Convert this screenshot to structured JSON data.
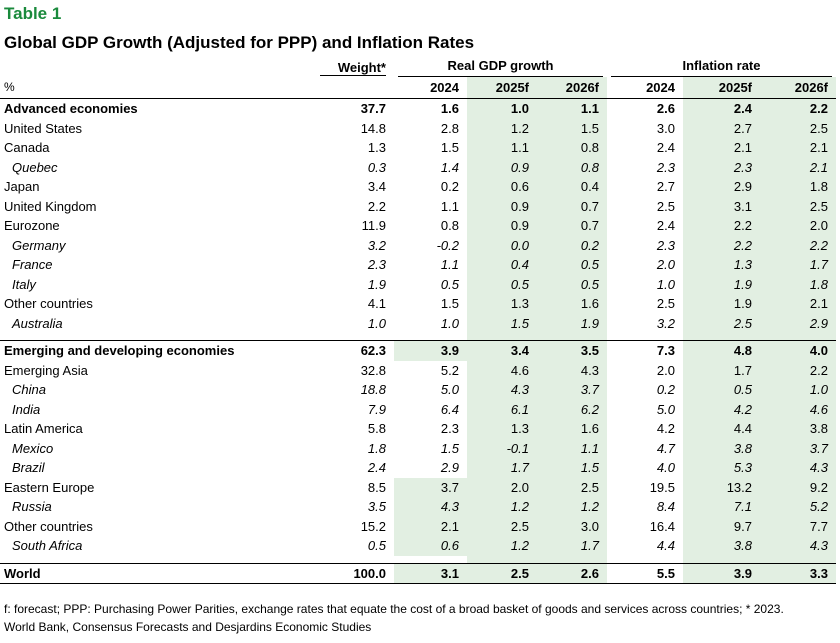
{
  "label": "Table 1",
  "title": "Global GDP Growth (Adjusted for PPP) and Inflation Rates",
  "headers": {
    "unit": "%",
    "weight": "Weight*",
    "gdp_group": "Real GDP growth",
    "inflation_group": "Inflation rate",
    "years": [
      "2024",
      "2025f",
      "2026f"
    ]
  },
  "rows": [
    {
      "name": "Advanced economies",
      "weight": "37.7",
      "gdp": [
        "1.6",
        "1.0",
        "1.1"
      ],
      "inf": [
        "2.6",
        "2.4",
        "2.2"
      ]
    },
    {
      "name": "United States",
      "weight": "14.8",
      "gdp": [
        "2.8",
        "1.2",
        "1.5"
      ],
      "inf": [
        "3.0",
        "2.7",
        "2.5"
      ]
    },
    {
      "name": "Canada",
      "weight": "1.3",
      "gdp": [
        "1.5",
        "1.1",
        "0.8"
      ],
      "inf": [
        "2.4",
        "2.1",
        "2.1"
      ]
    },
    {
      "name": "Quebec",
      "weight": "0.3",
      "gdp": [
        "1.4",
        "0.9",
        "0.8"
      ],
      "inf": [
        "2.3",
        "2.3",
        "2.1"
      ]
    },
    {
      "name": "Japan",
      "weight": "3.4",
      "gdp": [
        "0.2",
        "0.6",
        "0.4"
      ],
      "inf": [
        "2.7",
        "2.9",
        "1.8"
      ]
    },
    {
      "name": "United Kingdom",
      "weight": "2.2",
      "gdp": [
        "1.1",
        "0.9",
        "0.7"
      ],
      "inf": [
        "2.5",
        "3.1",
        "2.5"
      ]
    },
    {
      "name": "Eurozone",
      "weight": "11.9",
      "gdp": [
        "0.8",
        "0.9",
        "0.7"
      ],
      "inf": [
        "2.4",
        "2.2",
        "2.0"
      ]
    },
    {
      "name": "Germany",
      "weight": "3.2",
      "gdp": [
        "-0.2",
        "0.0",
        "0.2"
      ],
      "inf": [
        "2.3",
        "2.2",
        "2.2"
      ]
    },
    {
      "name": "France",
      "weight": "2.3",
      "gdp": [
        "1.1",
        "0.4",
        "0.5"
      ],
      "inf": [
        "2.0",
        "1.3",
        "1.7"
      ]
    },
    {
      "name": "Italy",
      "weight": "1.9",
      "gdp": [
        "0.5",
        "0.5",
        "0.5"
      ],
      "inf": [
        "1.0",
        "1.9",
        "1.8"
      ]
    },
    {
      "name": "Other countries",
      "weight": "4.1",
      "gdp": [
        "1.5",
        "1.3",
        "1.6"
      ],
      "inf": [
        "2.5",
        "1.9",
        "2.1"
      ]
    },
    {
      "name": "Australia",
      "weight": "1.0",
      "gdp": [
        "1.0",
        "1.5",
        "1.9"
      ],
      "inf": [
        "3.2",
        "2.5",
        "2.9"
      ]
    },
    {
      "name": "Emerging and developing economies",
      "weight": "62.3",
      "gdp": [
        "3.9",
        "3.4",
        "3.5"
      ],
      "inf": [
        "7.3",
        "4.8",
        "4.0"
      ]
    },
    {
      "name": "Emerging Asia",
      "weight": "32.8",
      "gdp": [
        "5.2",
        "4.6",
        "4.3"
      ],
      "inf": [
        "2.0",
        "1.7",
        "2.2"
      ]
    },
    {
      "name": "China",
      "weight": "18.8",
      "gdp": [
        "5.0",
        "4.3",
        "3.7"
      ],
      "inf": [
        "0.2",
        "0.5",
        "1.0"
      ]
    },
    {
      "name": "India",
      "weight": "7.9",
      "gdp": [
        "6.4",
        "6.1",
        "6.2"
      ],
      "inf": [
        "5.0",
        "4.2",
        "4.6"
      ]
    },
    {
      "name": "Latin America",
      "weight": "5.8",
      "gdp": [
        "2.3",
        "1.3",
        "1.6"
      ],
      "inf": [
        "4.2",
        "4.4",
        "3.8"
      ]
    },
    {
      "name": "Mexico",
      "weight": "1.8",
      "gdp": [
        "1.5",
        "-0.1",
        "1.1"
      ],
      "inf": [
        "4.7",
        "3.8",
        "3.7"
      ]
    },
    {
      "name": "Brazil",
      "weight": "2.4",
      "gdp": [
        "2.9",
        "1.7",
        "1.5"
      ],
      "inf": [
        "4.0",
        "5.3",
        "4.3"
      ]
    },
    {
      "name": "Eastern Europe",
      "weight": "8.5",
      "gdp": [
        "3.7",
        "2.0",
        "2.5"
      ],
      "inf": [
        "19.5",
        "13.2",
        "9.2"
      ]
    },
    {
      "name": "Russia",
      "weight": "3.5",
      "gdp": [
        "4.3",
        "1.2",
        "1.2"
      ],
      "inf": [
        "8.4",
        "7.1",
        "5.2"
      ]
    },
    {
      "name": "Other countries",
      "weight": "15.2",
      "gdp": [
        "2.1",
        "2.5",
        "3.0"
      ],
      "inf": [
        "16.4",
        "9.7",
        "7.7"
      ]
    },
    {
      "name": "South Africa",
      "weight": "0.5",
      "gdp": [
        "0.6",
        "1.2",
        "1.7"
      ],
      "inf": [
        "4.4",
        "3.8",
        "4.3"
      ]
    },
    {
      "name": "World",
      "weight": "100.0",
      "gdp": [
        "3.1",
        "2.5",
        "2.6"
      ],
      "inf": [
        "5.5",
        "3.9",
        "3.3"
      ]
    }
  ],
  "footnotes": [
    "f: forecast; PPP: Purchasing Power Parities, exchange rates that equate the cost of a broad basket of goods and services across countries; * 2023.",
    "World Bank, Consensus Forecasts and Desjardins Economic Studies"
  ],
  "highlight_color": "#e2efe2",
  "label_color": "#1a8a3c"
}
